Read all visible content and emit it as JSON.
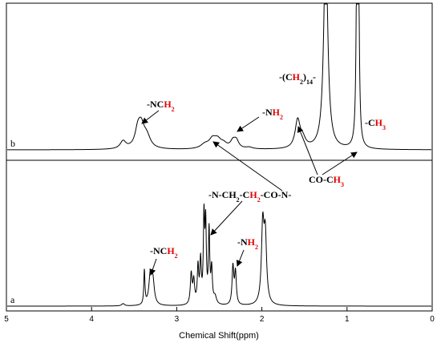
{
  "chart_data": {
    "type": "line",
    "xlabel": "Chemical Shift(ppm)",
    "xlim": [
      5,
      0
    ],
    "x_reversed": true,
    "xticks": [
      5,
      4,
      3,
      2,
      1,
      0
    ],
    "grid": false,
    "series": [
      {
        "name": "b",
        "peaks": [
          {
            "ppm": 3.63,
            "h": 0.09,
            "w": 0.04
          },
          {
            "ppm": 3.46,
            "h": 0.14,
            "w": 0.035
          },
          {
            "ppm": 3.42,
            "h": 0.28,
            "w": 0.05
          },
          {
            "ppm": 3.35,
            "h": 0.12,
            "w": 0.05
          },
          {
            "ppm": 2.67,
            "h": 0.05,
            "w": 0.06
          },
          {
            "ppm": 2.58,
            "h": 0.1,
            "w": 0.05
          },
          {
            "ppm": 2.52,
            "h": 0.09,
            "w": 0.05
          },
          {
            "ppm": 2.45,
            "h": 0.05,
            "w": 0.05
          },
          {
            "ppm": 2.34,
            "h": 0.08,
            "w": 0.035
          },
          {
            "ppm": 2.3,
            "h": 0.09,
            "w": 0.035
          },
          {
            "ppm": 2.15,
            "h": 0.02,
            "w": 0.05
          },
          {
            "ppm": 1.58,
            "h": 0.33,
            "w": 0.035
          },
          {
            "ppm": 1.52,
            "h": 0.1,
            "w": 0.04
          },
          {
            "ppm": 1.25,
            "h": 2.5,
            "w": 0.028
          },
          {
            "ppm": 0.885,
            "h": 1.6,
            "w": 0.01
          },
          {
            "ppm": 0.875,
            "h": 1.7,
            "w": 0.01
          },
          {
            "ppm": 0.865,
            "h": 1.6,
            "w": 0.01
          }
        ]
      },
      {
        "name": "a",
        "peaks": [
          {
            "ppm": 3.63,
            "h": 0.03,
            "w": 0.02
          },
          {
            "ppm": 3.38,
            "h": 0.45,
            "w": 0.008
          },
          {
            "ppm": 3.31,
            "h": 0.38,
            "w": 0.02
          },
          {
            "ppm": 3.28,
            "h": 0.3,
            "w": 0.02
          },
          {
            "ppm": 2.83,
            "h": 0.4,
            "w": 0.012
          },
          {
            "ppm": 2.8,
            "h": 0.3,
            "w": 0.012
          },
          {
            "ppm": 2.75,
            "h": 0.48,
            "w": 0.01
          },
          {
            "ppm": 2.72,
            "h": 0.55,
            "w": 0.01
          },
          {
            "ppm": 2.68,
            "h": 1.1,
            "w": 0.009
          },
          {
            "ppm": 2.66,
            "h": 1.0,
            "w": 0.009
          },
          {
            "ppm": 2.62,
            "h": 0.95,
            "w": 0.009
          },
          {
            "ppm": 2.59,
            "h": 0.45,
            "w": 0.01
          },
          {
            "ppm": 2.55,
            "h": 0.1,
            "w": 0.02
          },
          {
            "ppm": 2.34,
            "h": 0.5,
            "w": 0.012
          },
          {
            "ppm": 2.31,
            "h": 0.42,
            "w": 0.012
          },
          {
            "ppm": 1.99,
            "h": 1.0,
            "w": 0.018
          },
          {
            "ppm": 1.96,
            "h": 0.85,
            "w": 0.018
          }
        ]
      }
    ],
    "annotations": [
      {
        "series": "b",
        "label_parts": [
          [
            "-NC",
            "black"
          ],
          [
            "H",
            "red"
          ],
          [
            "2",
            "red-sub"
          ]
        ],
        "ppm": 3.45
      },
      {
        "series": "b",
        "label_parts": [
          [
            "-N",
            "black"
          ],
          [
            "H",
            "red"
          ],
          [
            "2",
            "red-sub"
          ]
        ],
        "ppm": 2.32
      },
      {
        "series": "b",
        "label_parts": [
          [
            "-(C",
            "black"
          ],
          [
            "H",
            "red"
          ],
          [
            "2",
            "black-sub"
          ],
          [
            ")",
            "black"
          ],
          [
            "14",
            "black-sub"
          ],
          [
            "-",
            "black"
          ]
        ],
        "ppm": 1.25
      },
      {
        "series": "b",
        "label_parts": [
          [
            "-C",
            "black"
          ],
          [
            "H",
            "red"
          ],
          [
            "3",
            "red-sub"
          ]
        ],
        "ppm": 0.87
      },
      {
        "series": "b",
        "label_parts": [
          [
            "CO-C",
            "black"
          ],
          [
            "H",
            "red"
          ],
          [
            "3",
            "red-sub"
          ]
        ],
        "ppm": 1.57
      },
      {
        "series": "a",
        "label_parts": [
          [
            "-N-C",
            "black"
          ],
          [
            "H",
            "black"
          ],
          [
            "2",
            "black-sub"
          ],
          [
            "-C",
            "black"
          ],
          [
            "H",
            "red"
          ],
          [
            "2",
            "red-sub"
          ],
          [
            "-CO-N-",
            "black"
          ]
        ],
        "ppm": 2.6
      },
      {
        "series": "a",
        "label_parts": [
          [
            "-NC",
            "black"
          ],
          [
            "H",
            "red"
          ],
          [
            "2",
            "red-sub"
          ]
        ],
        "ppm": 3.31
      },
      {
        "series": "a",
        "label_parts": [
          [
            "-N",
            "black"
          ],
          [
            "H",
            "red"
          ],
          [
            "2",
            "red-sub"
          ]
        ],
        "ppm": 2.34
      }
    ]
  },
  "ui": {
    "highlight_color": "#e00000",
    "line_color": "#000000"
  }
}
